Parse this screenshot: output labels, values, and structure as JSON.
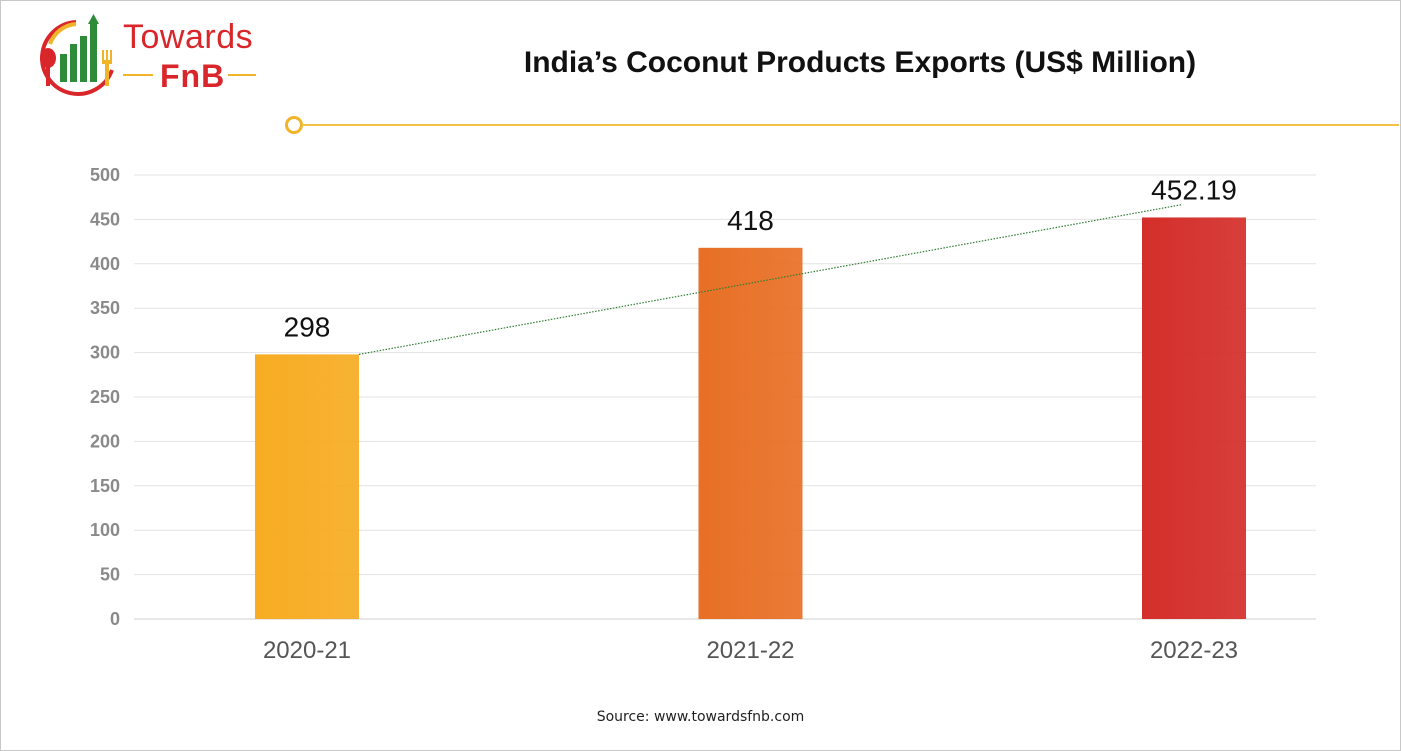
{
  "brand": {
    "name_top": "Towards",
    "name_bottom": "FnB"
  },
  "chart_data": {
    "type": "bar",
    "title": "India’s Coconut Products Exports (US$ Million)",
    "categories": [
      "2020-21",
      "2021-22",
      "2022-23"
    ],
    "values": [
      298,
      418,
      452.19
    ],
    "data_labels": [
      "298",
      "418",
      "452.19"
    ],
    "ylim": [
      0,
      500
    ],
    "yticks": [
      0,
      50,
      100,
      150,
      200,
      250,
      300,
      350,
      400,
      450,
      500
    ],
    "grid": true,
    "trendline": "linear",
    "colors": {
      "bars": [
        "#f7ac22",
        "#e86f25",
        "#d42e2a"
      ],
      "trendline": "#2e7d32",
      "grid": "#e3e3e3",
      "tick_label": "#8a8a8a",
      "category_label": "#555555"
    }
  },
  "footer": {
    "source": "Source: www.towardsfnb.com"
  }
}
